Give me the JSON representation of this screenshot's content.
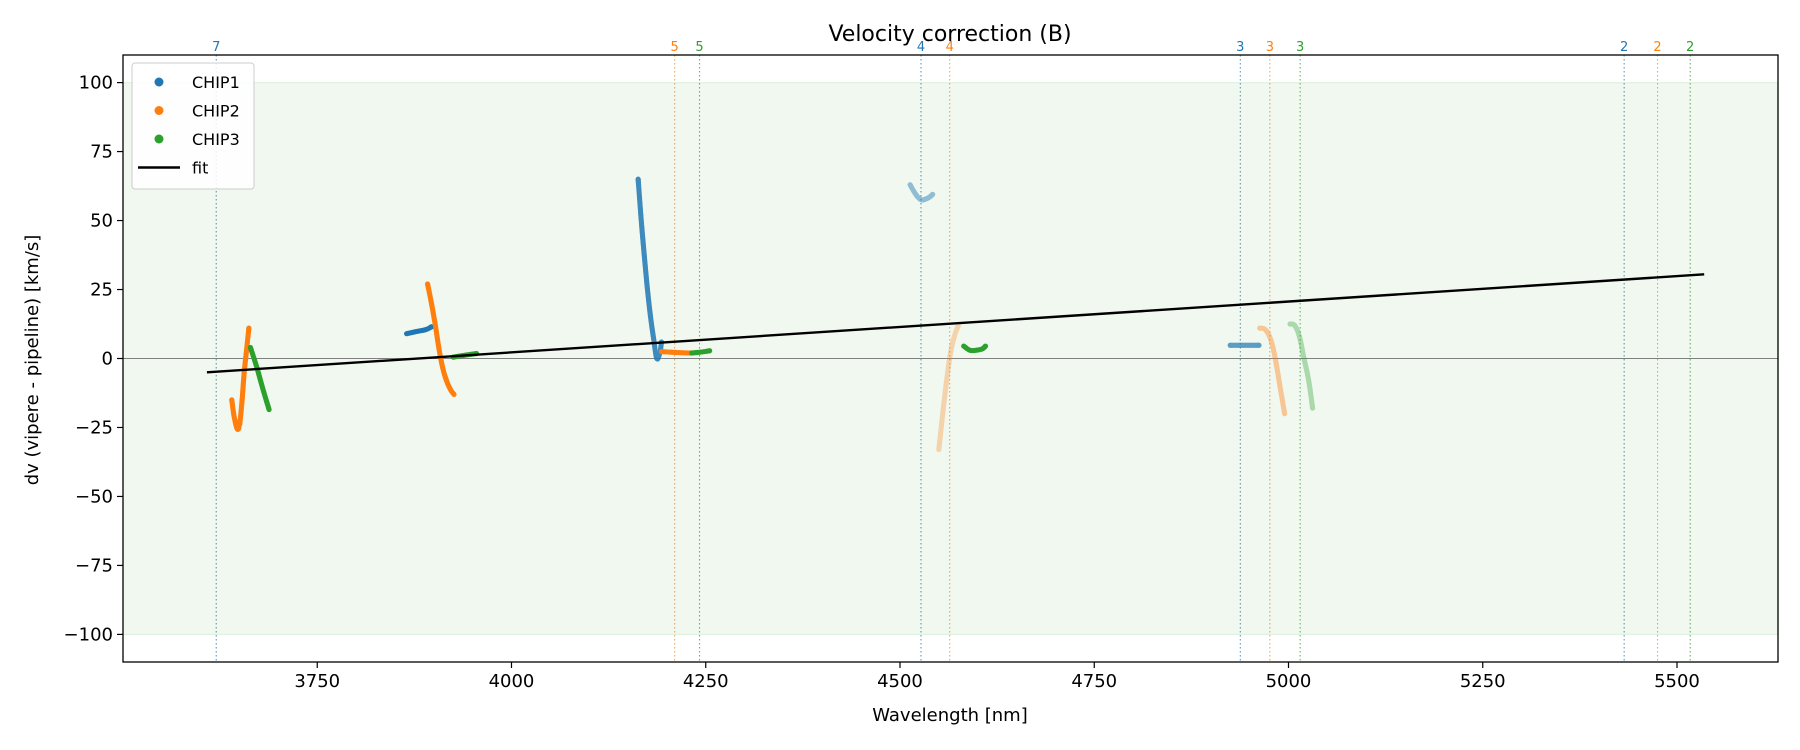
{
  "chart_data": {
    "type": "scatter",
    "title": "Velocity correction (B)",
    "xlabel": "Wavelength [nm]",
    "ylabel": "dv (vipere - pipeline) [km/s]",
    "xlim": [
      3500,
      5630
    ],
    "ylim": [
      -110,
      110
    ],
    "xticks": [
      3750,
      4000,
      4250,
      4500,
      4750,
      5000,
      5250,
      5500
    ],
    "yticks": [
      -100,
      -75,
      -50,
      -25,
      0,
      25,
      50,
      75,
      100
    ],
    "xtick_labels": [
      "3750",
      "4000",
      "4250",
      "4500",
      "4750",
      "5000",
      "5250",
      "5500"
    ],
    "ytick_labels": [
      "−100",
      "−75",
      "−50",
      "−25",
      "0",
      "25",
      "50",
      "75",
      "100"
    ],
    "band": {
      "ymin": -100,
      "ymax": 100,
      "color": "#2ca02c"
    },
    "zero_line": true,
    "legend": {
      "placement": "top-left",
      "entries": [
        {
          "label": "CHIP1",
          "kind": "marker",
          "color": "#1f77b4"
        },
        {
          "label": "CHIP2",
          "kind": "marker",
          "color": "#ff7f0e"
        },
        {
          "label": "CHIP3",
          "kind": "marker",
          "color": "#2ca02c"
        },
        {
          "label": "fit",
          "kind": "line",
          "color": "#000000"
        }
      ]
    },
    "fit": {
      "x": [
        3608,
        5535
      ],
      "y": [
        -5,
        30.5
      ],
      "color": "#000000"
    },
    "order_markers": [
      {
        "x": 3620,
        "label": "7",
        "color": "#1f77b4"
      },
      {
        "x": 4210,
        "label": "5",
        "color": "#ff7f0e"
      },
      {
        "x": 4242,
        "label": "5",
        "color": "#2ca02c"
      },
      {
        "x": 4527,
        "label": "4",
        "color": "#1f77b4"
      },
      {
        "x": 4564,
        "label": "4",
        "color": "#ff7f0e"
      },
      {
        "x": 4938,
        "label": "3",
        "color": "#1f77b4"
      },
      {
        "x": 4976,
        "label": "3",
        "color": "#ff7f0e"
      },
      {
        "x": 5015,
        "label": "3",
        "color": "#2ca02c"
      },
      {
        "x": 5432,
        "label": "2",
        "color": "#1f77b4"
      },
      {
        "x": 5475,
        "label": "2",
        "color": "#ff7f0e"
      },
      {
        "x": 5517,
        "label": "2",
        "color": "#2ca02c"
      }
    ],
    "segments": [
      {
        "chip": "CHIP2",
        "color": "#ff7f0e",
        "opacity": 1.0,
        "x": [
          3640,
          3643,
          3647,
          3650,
          3653,
          3656,
          3659,
          3662
        ],
        "y": [
          -15,
          -21,
          -25.5,
          -24,
          -16,
          -5,
          3,
          11
        ]
      },
      {
        "chip": "CHIP3",
        "color": "#2ca02c",
        "opacity": 1.0,
        "x": [
          3664,
          3672,
          3680,
          3688
        ],
        "y": [
          4,
          -3,
          -11,
          -18.5
        ]
      },
      {
        "chip": "CHIP1",
        "color": "#1f77b4",
        "opacity": 1.0,
        "x": [
          3865,
          3878,
          3890,
          3897
        ],
        "y": [
          9,
          9.8,
          10.5,
          11.5
        ]
      },
      {
        "chip": "CHIP2",
        "color": "#ff7f0e",
        "opacity": 1.0,
        "x": [
          3892,
          3897,
          3902,
          3907,
          3912,
          3917,
          3922,
          3926
        ],
        "y": [
          27,
          20,
          12,
          3,
          -4,
          -8.5,
          -11.5,
          -13
        ]
      },
      {
        "chip": "CHIP3",
        "color": "#2ca02c",
        "opacity": 1.0,
        "x": [
          3925,
          3940,
          3955
        ],
        "y": [
          0.5,
          1.2,
          1.8
        ]
      },
      {
        "chip": "CHIP1",
        "color": "#1f77b4",
        "opacity": 0.85,
        "x": [
          4163,
          4167,
          4171,
          4175,
          4179,
          4183,
          4187,
          4191,
          4193
        ],
        "y": [
          65,
          50,
          37,
          25,
          15,
          7,
          0,
          2,
          6
        ]
      },
      {
        "chip": "CHIP2",
        "color": "#ff7f0e",
        "opacity": 1.0,
        "x": [
          4193,
          4205,
          4218,
          4230
        ],
        "y": [
          2.5,
          2.3,
          2.1,
          2.0
        ]
      },
      {
        "chip": "CHIP3",
        "color": "#2ca02c",
        "opacity": 1.0,
        "x": [
          4232,
          4243,
          4255
        ],
        "y": [
          2.0,
          2.3,
          2.8
        ]
      },
      {
        "chip": "CHIP1",
        "color": "#1f77b4",
        "opacity": 0.45,
        "x": [
          4513,
          4518,
          4523,
          4528,
          4533,
          4538,
          4542
        ],
        "y": [
          63,
          60.5,
          58.5,
          57.5,
          57.8,
          58.5,
          59.5
        ]
      },
      {
        "chip": "CHIP2",
        "color": "#ff7f0e",
        "opacity": 0.3,
        "x": [
          4550,
          4555,
          4560,
          4565,
          4570,
          4575
        ],
        "y": [
          -33,
          -20,
          -8,
          2,
          8,
          12
        ]
      },
      {
        "chip": "CHIP3",
        "color": "#2ca02c",
        "opacity": 1.0,
        "x": [
          4582,
          4590,
          4598,
          4606,
          4610
        ],
        "y": [
          4.5,
          3,
          3,
          3.5,
          4.5
        ]
      },
      {
        "chip": "CHIP1",
        "color": "#1f77b4",
        "opacity": 0.7,
        "x": [
          4925,
          4935,
          4945,
          4955,
          4962
        ],
        "y": [
          4.8,
          4.8,
          4.8,
          4.8,
          4.8
        ]
      },
      {
        "chip": "CHIP2",
        "color": "#ff7f0e",
        "opacity": 0.4,
        "x": [
          4963,
          4970,
          4977,
          4983,
          4989,
          4995
        ],
        "y": [
          11,
          10.5,
          7,
          0,
          -10,
          -20
        ]
      },
      {
        "chip": "CHIP3",
        "color": "#2ca02c",
        "opacity": 0.35,
        "x": [
          5002,
          5008,
          5014,
          5020,
          5026,
          5031
        ],
        "y": [
          12.5,
          12,
          8,
          0,
          -8,
          -18
        ]
      }
    ]
  }
}
